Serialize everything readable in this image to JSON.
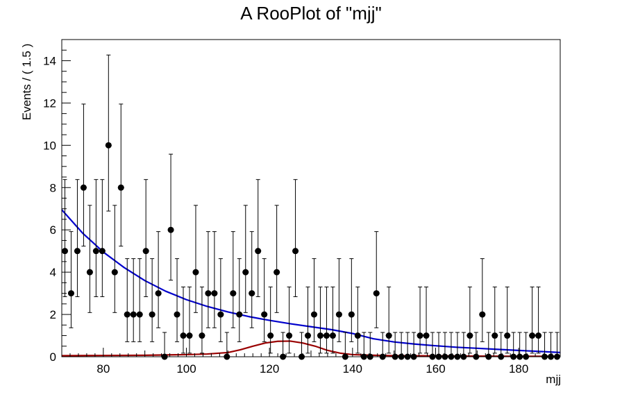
{
  "chart_data": {
    "type": "scatter",
    "title": "A RooPlot of \"mjj\"",
    "xlabel": "mjj",
    "ylabel": "Events / ( 1.5 )",
    "xlim": [
      70,
      190
    ],
    "ylim": [
      0,
      15
    ],
    "x_ticks": [
      "80",
      "100",
      "120",
      "140",
      "160",
      "180"
    ],
    "y_ticks": [
      "0",
      "2",
      "4",
      "6",
      "8",
      "10",
      "12",
      "14"
    ],
    "grid": false,
    "series": [
      {
        "kind": "points_with_errors",
        "color": "#000000",
        "x": [
          70.75,
          72.25,
          73.75,
          75.25,
          76.75,
          78.25,
          79.75,
          81.25,
          82.75,
          84.25,
          85.75,
          87.25,
          88.75,
          90.25,
          91.75,
          93.25,
          94.75,
          96.25,
          97.75,
          99.25,
          100.75,
          102.25,
          103.75,
          105.25,
          106.75,
          108.25,
          109.75,
          111.25,
          112.75,
          114.25,
          115.75,
          117.25,
          118.75,
          120.25,
          121.75,
          123.25,
          124.75,
          126.25,
          127.75,
          129.25,
          130.75,
          132.25,
          133.75,
          135.25,
          136.75,
          138.25,
          139.75,
          141.25,
          142.75,
          144.25,
          145.75,
          147.25,
          148.75,
          150.25,
          151.75,
          153.25,
          154.75,
          156.25,
          157.75,
          159.25,
          160.75,
          162.25,
          163.75,
          165.25,
          166.75,
          168.25,
          169.75,
          171.25,
          172.75,
          174.25,
          175.75,
          177.25,
          178.75,
          180.25,
          181.75,
          183.25,
          184.75,
          186.25,
          187.75,
          189.25
        ],
        "y": [
          5,
          3,
          5,
          8,
          4,
          5,
          5,
          10,
          4,
          8,
          2,
          2,
          2,
          5,
          2,
          3,
          0,
          6,
          2,
          1,
          1,
          4,
          1,
          3,
          3,
          2,
          0,
          3,
          2,
          4,
          3,
          5,
          2,
          1,
          4,
          0,
          1,
          5,
          0,
          1,
          2,
          1,
          1,
          1,
          2,
          0,
          2,
          1,
          0,
          0,
          3,
          0,
          1,
          0,
          0,
          0,
          0,
          1,
          1,
          0,
          0,
          0,
          0,
          0,
          0,
          1,
          0,
          2,
          0,
          1,
          0,
          1,
          0,
          0,
          0,
          1,
          1,
          0,
          0,
          0
        ]
      },
      {
        "kind": "curve",
        "color": "#0000cc",
        "x": [
          70,
          75,
          80,
          85,
          90,
          95,
          100,
          105,
          110,
          115,
          120,
          125,
          130,
          135,
          140,
          145,
          150,
          155,
          160,
          165,
          170,
          175,
          180,
          185,
          190
        ],
        "y": [
          6.95,
          5.85,
          4.95,
          4.22,
          3.6,
          3.1,
          2.7,
          2.38,
          2.12,
          1.9,
          1.72,
          1.56,
          1.42,
          1.28,
          1.1,
          0.85,
          0.7,
          0.6,
          0.52,
          0.45,
          0.4,
          0.35,
          0.3,
          0.25,
          0.2
        ]
      },
      {
        "kind": "curve",
        "color": "#990000",
        "x": [
          70,
          80,
          90,
          100,
          105,
          110,
          113,
          116,
          119,
          122,
          125,
          128,
          131,
          134,
          137,
          140,
          145,
          150,
          160,
          170,
          180,
          190
        ],
        "y": [
          0.05,
          0.06,
          0.07,
          0.1,
          0.13,
          0.2,
          0.33,
          0.5,
          0.65,
          0.73,
          0.74,
          0.65,
          0.5,
          0.3,
          0.17,
          0.1,
          0.07,
          0.05,
          0.04,
          0.03,
          0.02,
          0.02
        ]
      }
    ]
  }
}
